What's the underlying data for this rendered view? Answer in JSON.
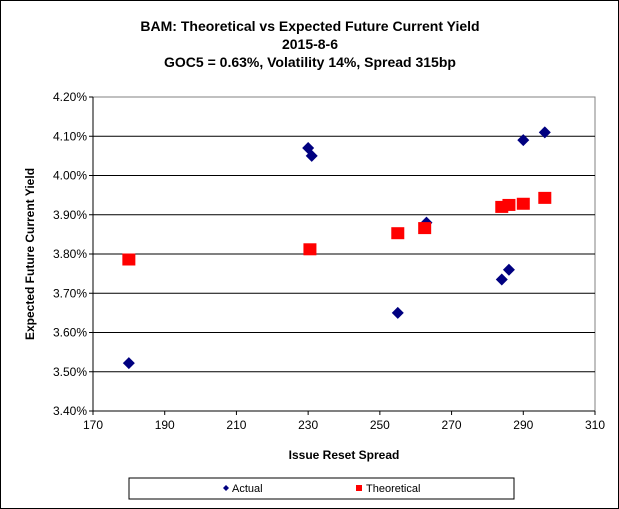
{
  "chart_data": {
    "type": "scatter",
    "title": [
      "BAM: Theoretical vs Expected Future Current Yield",
      "2015-8-6",
      "GOC5 = 0.63%, Volatility 14%, Spread 315bp"
    ],
    "xlabel": "Issue Reset Spread",
    "ylabel": "Expected Future Current Yield",
    "xlim": [
      170,
      310
    ],
    "ylim": [
      3.4,
      4.2
    ],
    "xticks": [
      "170",
      "190",
      "210",
      "230",
      "250",
      "270",
      "290",
      "310"
    ],
    "yticks": [
      "3.40%",
      "3.50%",
      "3.60%",
      "3.70%",
      "3.80%",
      "3.90%",
      "4.00%",
      "4.10%",
      "4.20%"
    ],
    "grid": "horizontal",
    "legend_position": "bottom",
    "series": [
      {
        "name": "Actual",
        "marker": "diamond",
        "color": "#000080",
        "points": [
          [
            180,
            3.522
          ],
          [
            230,
            4.07
          ],
          [
            231,
            4.05
          ],
          [
            255,
            3.65
          ],
          [
            263,
            3.88
          ],
          [
            284,
            3.735
          ],
          [
            286,
            3.76
          ],
          [
            290,
            4.09
          ],
          [
            296,
            4.11
          ]
        ]
      },
      {
        "name": "Theoretical",
        "marker": "square",
        "color": "#ff0000",
        "points": [
          [
            180,
            3.786
          ],
          [
            230.5,
            3.812
          ],
          [
            255,
            3.853
          ],
          [
            262.5,
            3.866
          ],
          [
            284,
            3.92
          ],
          [
            286,
            3.925
          ],
          [
            290,
            3.928
          ],
          [
            296,
            3.943
          ]
        ]
      }
    ]
  }
}
